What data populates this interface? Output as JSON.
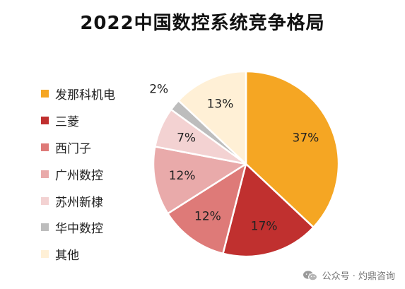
{
  "title": "2022中国数控系统竞争格局",
  "chart_data": {
    "type": "pie",
    "title": "2022中国数控系统竞争格局",
    "slices": [
      {
        "label": "发那科机电",
        "value": 37,
        "display": "37%",
        "color": "#F5A623"
      },
      {
        "label": "三菱",
        "value": 17,
        "display": "17%",
        "color": "#C0302F"
      },
      {
        "label": "西门子",
        "value": 12,
        "display": "12%",
        "color": "#DE7A78"
      },
      {
        "label": "广州数控",
        "value": 12,
        "display": "12%",
        "color": "#E9AAAA"
      },
      {
        "label": "苏州新棣",
        "value": 7,
        "display": "7%",
        "color": "#F3D2D2"
      },
      {
        "label": "华中数控",
        "value": 2,
        "display": "2%",
        "color": "#BDBDBD"
      },
      {
        "label": "其他",
        "value": 13,
        "display": "13%",
        "color": "#FFF0D6"
      }
    ],
    "legend_position": "left",
    "start_angle": "top",
    "direction": "clockwise"
  },
  "watermark": {
    "text": "公众号 · 灼鼎咨询",
    "icon": "wechat-icon"
  }
}
